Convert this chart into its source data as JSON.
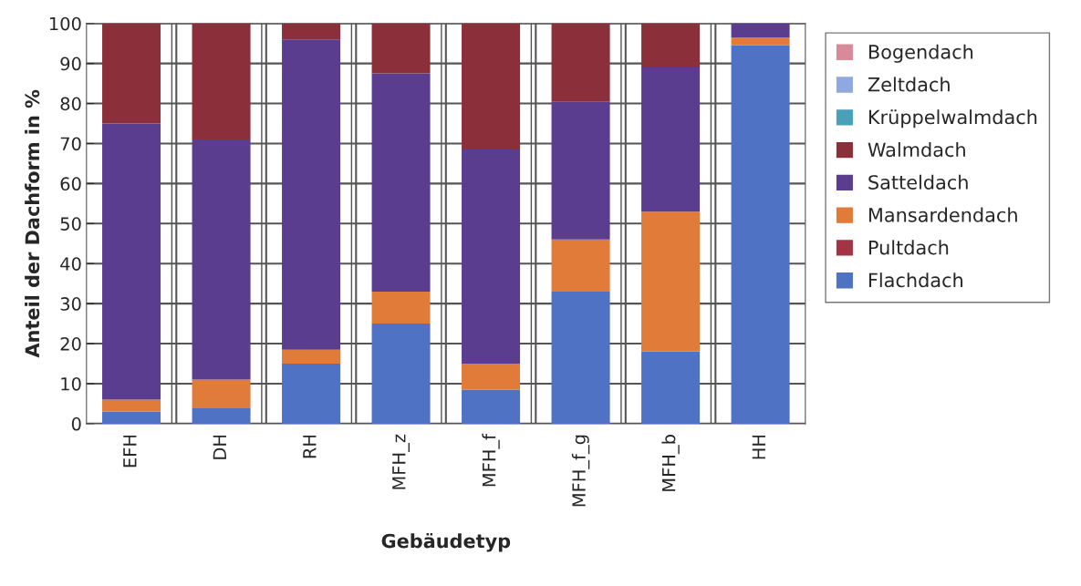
{
  "chart_data": {
    "type": "bar",
    "stacked": true,
    "xlabel": "Gebäudetyp",
    "ylabel": "Anteil der Dachform in %",
    "categories": [
      "EFH",
      "DH",
      "RH",
      "MFH_z",
      "MFH_f",
      "MFH_f_g",
      "MFH_b",
      "HH"
    ],
    "series": [
      {
        "name": "Flachdach",
        "color": "#4f72c4",
        "values": [
          3,
          4,
          15,
          25,
          8.5,
          33,
          18,
          94.5
        ]
      },
      {
        "name": "Pultdach",
        "color": "#a33443",
        "values": [
          0,
          0,
          0,
          0,
          0,
          0,
          0,
          0
        ]
      },
      {
        "name": "Mansardendach",
        "color": "#e07b3a",
        "values": [
          3,
          7,
          3.5,
          8,
          6.5,
          13,
          35,
          2
        ]
      },
      {
        "name": "Satteldach",
        "color": "#5a3d8f",
        "values": [
          69,
          60,
          77.5,
          54.5,
          53.5,
          34.5,
          36,
          3.5
        ]
      },
      {
        "name": "Walmdach",
        "color": "#8b2f3a",
        "values": [
          25,
          29,
          4,
          12.5,
          31.5,
          19.5,
          11,
          0
        ]
      },
      {
        "name": "Krüppelwalmdach",
        "color": "#4aa0b8",
        "values": [
          0,
          0,
          0,
          0,
          0,
          0,
          0,
          0
        ]
      },
      {
        "name": "Zeltdach",
        "color": "#8fa8e0",
        "values": [
          0,
          0,
          0,
          0,
          0,
          0,
          0,
          0
        ]
      },
      {
        "name": "Bogendach",
        "color": "#d98a9a",
        "values": [
          0,
          0,
          0,
          0,
          0,
          0,
          0,
          0
        ]
      }
    ],
    "ylim": [
      0,
      100
    ],
    "yticks": [
      0,
      10,
      20,
      30,
      40,
      50,
      60,
      70,
      80,
      90,
      100
    ],
    "grid": true,
    "legend": "right"
  }
}
